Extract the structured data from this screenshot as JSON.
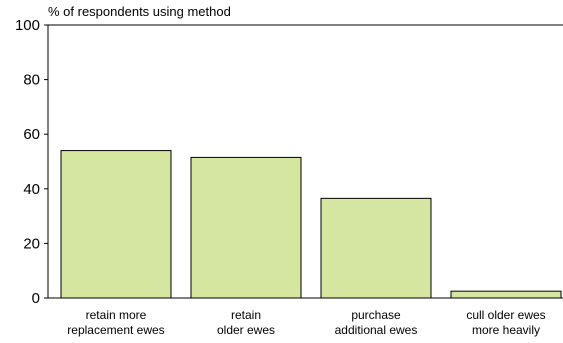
{
  "chart_data": {
    "type": "bar",
    "title": "",
    "ylabel": "% of respondents using method",
    "xlabel": "",
    "ylim": [
      0,
      100
    ],
    "yticks": [
      0,
      20,
      40,
      60,
      80,
      100
    ],
    "grid": false,
    "categories": [
      [
        "retain more",
        "replacement ewes"
      ],
      [
        "retain",
        "older ewes"
      ],
      [
        "purchase",
        "additional ewes"
      ],
      [
        "cull older ewes",
        "more heavily"
      ]
    ],
    "values": [
      54,
      51.5,
      36.5,
      2.5
    ],
    "colors": {
      "bar_fill": "#d4e6a0",
      "bar_stroke": "#000000",
      "axis": "#000000"
    }
  }
}
